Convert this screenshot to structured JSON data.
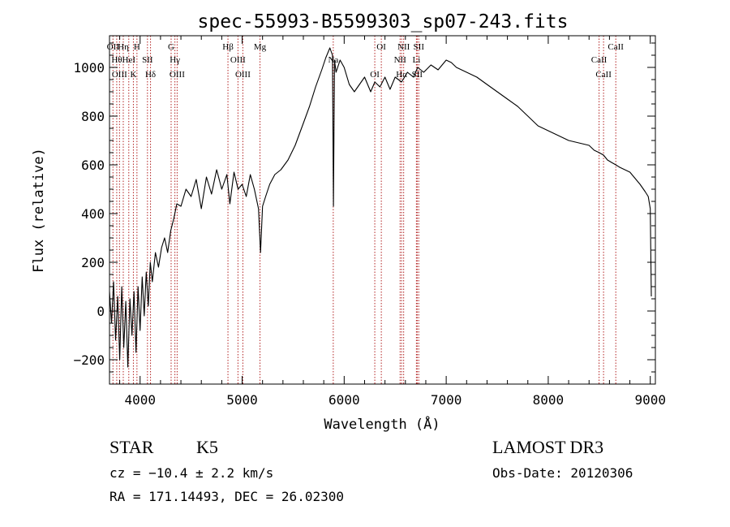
{
  "chart_data": {
    "type": "line",
    "title": "spec-55993-B5599303_sp07-243.fits",
    "xlabel": "Wavelength (Å)",
    "ylabel": "Flux (relative)",
    "xlim": [
      3700,
      9050
    ],
    "ylim": [
      -300,
      1130
    ],
    "xticks": [
      4000,
      5000,
      6000,
      7000,
      8000,
      9000
    ],
    "yticks": [
      -200,
      0,
      200,
      400,
      600,
      800,
      1000
    ],
    "series": [
      {
        "name": "flux",
        "x": [
          3700,
          3720,
          3740,
          3760,
          3780,
          3800,
          3820,
          3840,
          3860,
          3880,
          3900,
          3920,
          3940,
          3960,
          3980,
          4000,
          4020,
          4040,
          4060,
          4080,
          4100,
          4120,
          4150,
          4180,
          4210,
          4240,
          4270,
          4300,
          4330,
          4360,
          4400,
          4450,
          4500,
          4550,
          4600,
          4650,
          4700,
          4750,
          4800,
          4850,
          4880,
          4920,
          4960,
          5000,
          5040,
          5080,
          5120,
          5160,
          5180,
          5200,
          5230,
          5270,
          5320,
          5380,
          5450,
          5520,
          5590,
          5660,
          5720,
          5780,
          5820,
          5860,
          5885,
          5895,
          5905,
          5920,
          5960,
          6000,
          6050,
          6100,
          6150,
          6200,
          6260,
          6300,
          6350,
          6400,
          6450,
          6500,
          6563,
          6620,
          6680,
          6720,
          6780,
          6850,
          6920,
          7000,
          7050,
          7100,
          7200,
          7300,
          7400,
          7500,
          7600,
          7700,
          7800,
          7900,
          8000,
          8100,
          8200,
          8300,
          8400,
          8450,
          8500,
          8542,
          8580,
          8620,
          8662,
          8700,
          8800,
          8900,
          8950,
          8980,
          9000,
          9010
        ],
        "values": [
          80,
          -50,
          120,
          -120,
          60,
          -200,
          100,
          -150,
          40,
          -230,
          50,
          -100,
          80,
          -170,
          100,
          -80,
          140,
          -20,
          160,
          20,
          200,
          120,
          240,
          180,
          260,
          300,
          240,
          330,
          380,
          440,
          430,
          500,
          470,
          540,
          420,
          550,
          480,
          580,
          500,
          560,
          440,
          570,
          500,
          520,
          470,
          560,
          500,
          420,
          240,
          430,
          470,
          520,
          560,
          580,
          620,
          680,
          760,
          840,
          920,
          990,
          1040,
          1080,
          1050,
          430,
          1030,
          980,
          1030,
          1000,
          930,
          900,
          930,
          960,
          900,
          940,
          920,
          960,
          910,
          960,
          940,
          980,
          960,
          1000,
          980,
          1010,
          990,
          1030,
          1020,
          1000,
          980,
          960,
          930,
          900,
          870,
          840,
          800,
          760,
          740,
          720,
          700,
          690,
          680,
          660,
          650,
          640,
          620,
          610,
          600,
          590,
          570,
          520,
          490,
          470,
          420,
          60
        ],
        "color": "#000000"
      }
    ],
    "annotations": [
      {
        "wave": 3734,
        "label": "OII"
      },
      {
        "wave": 3771,
        "label": "Hθ"
      },
      {
        "wave": 3798,
        "label": "OIII"
      },
      {
        "wave": 3835,
        "label": "Hη"
      },
      {
        "wave": 3889,
        "label": "HeI"
      },
      {
        "wave": 3934,
        "label": "K"
      },
      {
        "wave": 3969,
        "label": "H"
      },
      {
        "wave": 4072,
        "label": "SII"
      },
      {
        "wave": 4102,
        "label": "Hδ"
      },
      {
        "wave": 4304,
        "label": "G"
      },
      {
        "wave": 4341,
        "label": "Hγ"
      },
      {
        "wave": 4363,
        "label": "OIII"
      },
      {
        "wave": 4861,
        "label": "Hβ"
      },
      {
        "wave": 4959,
        "label": "OIII"
      },
      {
        "wave": 5007,
        "label": "OIII"
      },
      {
        "wave": 5175,
        "label": "Mg"
      },
      {
        "wave": 5893,
        "label": "Na"
      },
      {
        "wave": 6300,
        "label": "OI"
      },
      {
        "wave": 6364,
        "label": "OI"
      },
      {
        "wave": 6548,
        "label": "NII"
      },
      {
        "wave": 6563,
        "label": "Hα"
      },
      {
        "wave": 6583,
        "label": "NII"
      },
      {
        "wave": 6708,
        "label": "Li"
      },
      {
        "wave": 6716,
        "label": "SII"
      },
      {
        "wave": 6731,
        "label": "SII"
      },
      {
        "wave": 8498,
        "label": "CaII"
      },
      {
        "wave": 8542,
        "label": "CaII"
      },
      {
        "wave": 8662,
        "label": "CaII"
      }
    ],
    "line_color": "#b22222"
  },
  "info": {
    "object_class": "STAR",
    "subclass": "K5",
    "cz": "cz = −10.4 ± 2.2 km/s",
    "coords": "RA = 171.14493, DEC =  26.02300",
    "survey": "LAMOST DR3",
    "obs_date": "Obs-Date: 20120306"
  }
}
